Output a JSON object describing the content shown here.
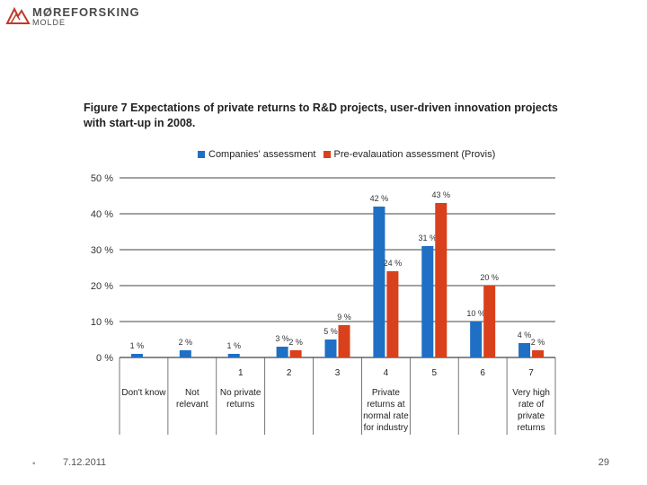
{
  "header": {
    "logo_name": "MØREFORSKING",
    "logo_sub": "MOLDE"
  },
  "legend": {
    "series1": "Companies' assessment",
    "series2": "Pre-evalauation assessment (Provis)"
  },
  "colors": {
    "series1": "#1f6fc5",
    "series2": "#d9401c",
    "grid": "#444444",
    "logo": "#c0392b"
  },
  "chart_data": {
    "type": "bar",
    "title": "Figure 7 Expectations of private returns to R&D projects, user-driven innovation projects with start-up in 2008.",
    "y_tick_labels": [
      "0 %",
      "10 %",
      "20 %",
      "30 %",
      "40 %",
      "50 %"
    ],
    "ylim": [
      0,
      50
    ],
    "categories": [
      "Don't know",
      "Not relevant",
      "1",
      "2",
      "3",
      "4",
      "5",
      "6",
      "7"
    ],
    "category_numbers": [
      "",
      "",
      "1",
      "2",
      "3",
      "4",
      "5",
      "6",
      "7"
    ],
    "category_descriptions": [
      "Don't know",
      "Not relevant",
      "No private returns",
      "",
      "",
      "Private returns at normal rate for industry",
      "",
      "",
      "Very high rate of private returns"
    ],
    "series": [
      {
        "name": "Companies' assessment",
        "values": [
          1,
          2,
          1,
          3,
          5,
          42,
          31,
          10,
          4
        ],
        "labels": [
          "1 %",
          "2 %",
          "1 %",
          "3 %",
          "5 %",
          "42 %",
          "31 %",
          "10 %",
          "4 %"
        ]
      },
      {
        "name": "Pre-evalauation assessment (Provis)",
        "values": [
          null,
          null,
          null,
          2,
          9,
          24,
          43,
          20,
          2
        ],
        "labels": [
          "",
          "",
          "",
          "2 %",
          "9 %",
          "24 %",
          "43 %",
          "20 %",
          "2 %"
        ]
      }
    ]
  },
  "footer": {
    "bullet": "▪",
    "date": "7.12.2011",
    "page": "29"
  }
}
